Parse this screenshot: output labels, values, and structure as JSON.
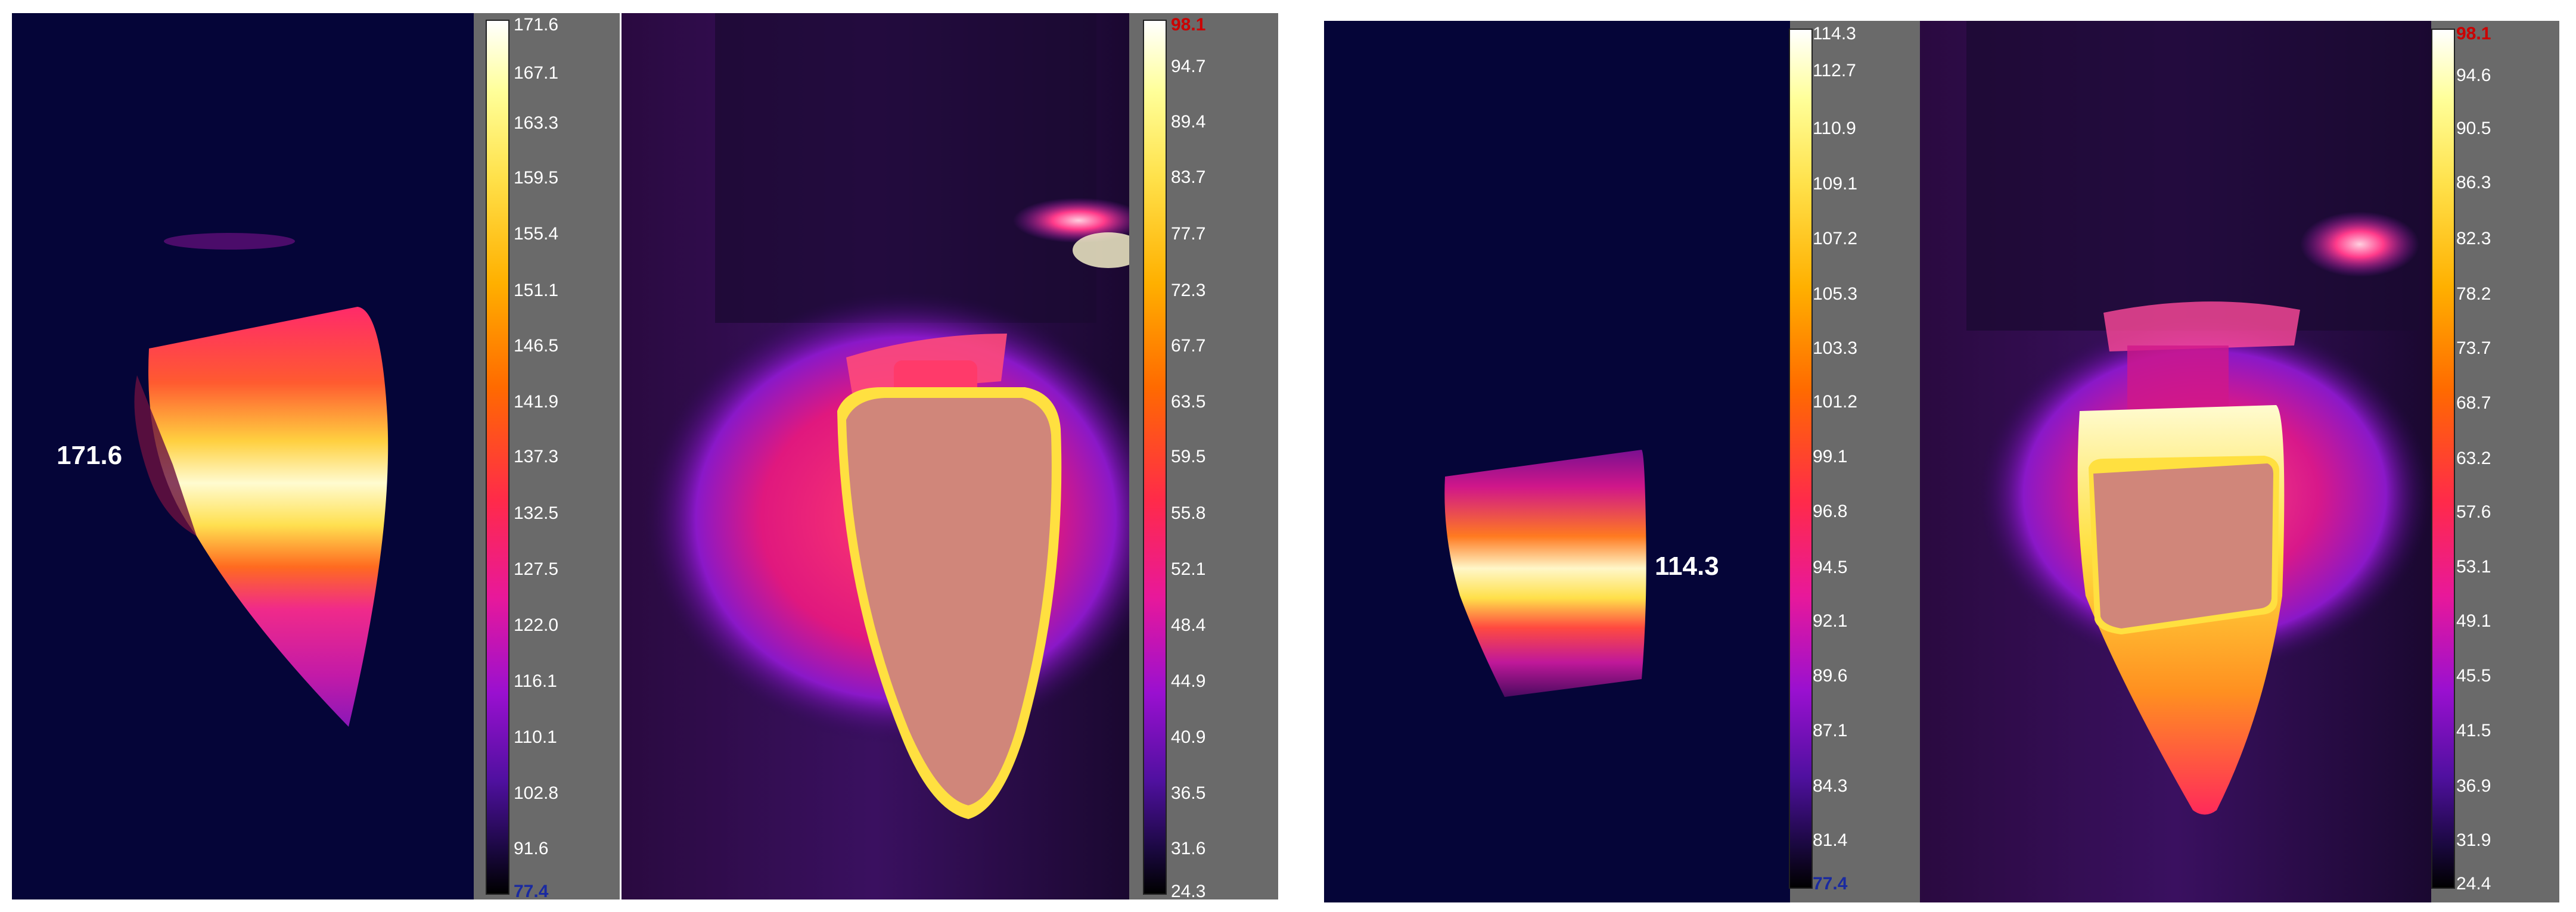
{
  "scale_a": {
    "ticks": [
      "171.6",
      "167.1",
      "163.3",
      "159.5",
      "155.4",
      "151.1",
      "146.5",
      "141.9",
      "137.3",
      "132.5",
      "127.5",
      "122.0",
      "116.1",
      "110.1",
      "102.8",
      "91.6",
      "77.4"
    ]
  },
  "scale_b": {
    "ticks": [
      "98.1",
      "94.7",
      "89.4",
      "83.7",
      "77.7",
      "72.3",
      "67.7",
      "63.5",
      "59.5",
      "55.8",
      "52.1",
      "48.4",
      "44.9",
      "40.9",
      "36.5",
      "31.6",
      "24.3"
    ]
  },
  "scale_c": {
    "ticks": [
      "114.3",
      "112.7",
      "110.9",
      "109.1",
      "107.2",
      "105.3",
      "103.3",
      "101.2",
      "99.1",
      "96.8",
      "94.5",
      "92.1",
      "89.6",
      "87.1",
      "84.3",
      "81.4",
      "77.4"
    ]
  },
  "scale_d": {
    "ticks": [
      "98.1",
      "94.6",
      "90.5",
      "86.3",
      "82.3",
      "78.2",
      "73.7",
      "68.7",
      "63.2",
      "57.6",
      "53.1",
      "49.1",
      "45.5",
      "41.5",
      "36.9",
      "31.9",
      "24.4"
    ]
  },
  "annotations": {
    "max_a": "171.6",
    "max_c": "114.3"
  },
  "colors": {
    "background_navy": "#050538",
    "panel_gray": "#6a6a6a",
    "tissue_pink": "#d0867a"
  }
}
